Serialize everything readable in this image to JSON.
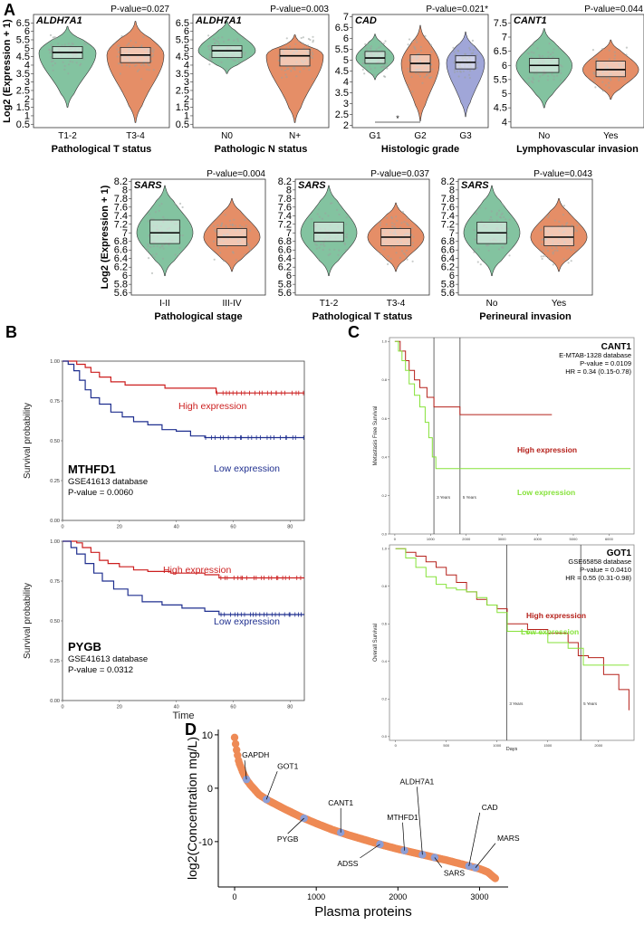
{
  "panel_letters": {
    "a": "A",
    "b": "B",
    "c": "C",
    "d": "D"
  },
  "colors": {
    "green": "#6db98f",
    "orange": "#e07a4c",
    "blue": "#8f97d1",
    "red": "#cc1f1f",
    "navy": "#1f2f8f",
    "lime": "#86e23a",
    "dred": "#b5201a",
    "dot": "#ee8a55",
    "marker": "#8c9ed6"
  },
  "chart_data": [
    {
      "type": "violin",
      "gene": "ALDH7A1",
      "pvalue": "P-value=0.027",
      "ylabel": "Log2 (Expression + 1)",
      "xlabel": "Pathological T status",
      "yticks": [
        "0.5",
        "1",
        "1.5",
        "2",
        "2.5",
        "3",
        "3.5",
        "4",
        "4.5",
        "5",
        "5.5",
        "6",
        "6.5"
      ],
      "ylim": [
        0.3,
        7
      ],
      "groups": [
        {
          "label": "T1-2",
          "color": "green",
          "median": 4.75,
          "q1": 4.4,
          "q3": 5.1,
          "min": 1.5,
          "max": 6.3
        },
        {
          "label": "T3-4",
          "color": "orange",
          "median": 4.6,
          "q1": 4.15,
          "q3": 5.05,
          "min": 0.6,
          "max": 6.6
        }
      ]
    },
    {
      "type": "violin",
      "gene": "ALDH7A1",
      "pvalue": "P-value=0.003",
      "ylabel": "",
      "xlabel": "Pathologic N status",
      "yticks": [
        "0.5",
        "1",
        "1.5",
        "2",
        "2.5",
        "3",
        "3.5",
        "4",
        "4.5",
        "5",
        "5.5",
        "6",
        "6.5"
      ],
      "ylim": [
        0.3,
        7
      ],
      "groups": [
        {
          "label": "N0",
          "color": "green",
          "median": 4.85,
          "q1": 4.45,
          "q3": 5.15,
          "min": 3.5,
          "max": 6.6
        },
        {
          "label": "N+",
          "color": "orange",
          "median": 4.55,
          "q1": 3.95,
          "q3": 4.95,
          "min": 0.6,
          "max": 5.8
        }
      ]
    },
    {
      "type": "violin",
      "gene": "CAD",
      "pvalue": "P-value=0.021*",
      "ylabel": "",
      "xlabel": "Histologic grade",
      "yticks": [
        "2",
        "2.5",
        "3",
        "3.5",
        "4",
        "4.5",
        "5",
        "5.5",
        "6",
        "6.5",
        "7"
      ],
      "ylim": [
        1.9,
        7.1
      ],
      "sig": "*",
      "groups": [
        {
          "label": "G1",
          "color": "green",
          "median": 5.1,
          "q1": 4.85,
          "q3": 5.4,
          "min": 4.1,
          "max": 6.2
        },
        {
          "label": "G2",
          "color": "orange",
          "median": 4.85,
          "q1": 4.45,
          "q3": 5.25,
          "min": 2.2,
          "max": 6.6
        },
        {
          "label": "G3",
          "color": "blue",
          "median": 4.9,
          "q1": 4.6,
          "q3": 5.2,
          "min": 2.4,
          "max": 6.3
        }
      ]
    },
    {
      "type": "violin",
      "gene": "CANT1",
      "pvalue": "P-value=0.044",
      "ylabel": "",
      "xlabel": "Lymphovascular invasion",
      "yticks": [
        "4",
        "4.5",
        "5",
        "5.5",
        "6",
        "6.5",
        "7",
        "7.5"
      ],
      "ylim": [
        3.8,
        7.8
      ],
      "groups": [
        {
          "label": "No",
          "color": "green",
          "median": 6.0,
          "q1": 5.75,
          "q3": 6.25,
          "min": 4.5,
          "max": 7.3
        },
        {
          "label": "Yes",
          "color": "orange",
          "median": 5.85,
          "q1": 5.6,
          "q3": 6.15,
          "min": 4.8,
          "max": 6.9
        }
      ]
    },
    {
      "type": "violin",
      "gene": "SARS",
      "pvalue": "P-value=0.004",
      "ylabel": "Log2 (Expression + 1)",
      "xlabel": "Pathological stage",
      "yticks": [
        "5.6",
        "5.8",
        "6",
        "6.2",
        "6.4",
        "6.6",
        "6.8",
        "7",
        "7.2",
        "7.4",
        "7.6",
        "7.8",
        "8",
        "8.2"
      ],
      "ylim": [
        5.55,
        8.25
      ],
      "groups": [
        {
          "label": "I-II",
          "color": "green",
          "median": 7.0,
          "q1": 6.75,
          "q3": 7.3,
          "min": 6.0,
          "max": 8.1
        },
        {
          "label": "III-IV",
          "color": "orange",
          "median": 6.9,
          "q1": 6.7,
          "q3": 7.1,
          "min": 6.1,
          "max": 7.8
        }
      ]
    },
    {
      "type": "violin",
      "gene": "SARS",
      "pvalue": "P-value=0.037",
      "ylabel": "",
      "xlabel": "Pathological T status",
      "yticks": [
        "5.6",
        "5.8",
        "6",
        "6.2",
        "6.4",
        "6.6",
        "6.8",
        "7",
        "7.2",
        "7.4",
        "7.6",
        "7.8",
        "8",
        "8.2"
      ],
      "ylim": [
        5.55,
        8.25
      ],
      "groups": [
        {
          "label": "T1-2",
          "color": "green",
          "median": 7.0,
          "q1": 6.8,
          "q3": 7.25,
          "min": 6.0,
          "max": 8.1
        },
        {
          "label": "T3-4",
          "color": "orange",
          "median": 6.9,
          "q1": 6.7,
          "q3": 7.1,
          "min": 6.1,
          "max": 7.7
        }
      ]
    },
    {
      "type": "violin",
      "gene": "SARS",
      "pvalue": "P-value=0.043",
      "ylabel": "",
      "xlabel": "Perineural invasion",
      "yticks": [
        "5.6",
        "5.8",
        "6",
        "6.2",
        "6.4",
        "6.6",
        "6.8",
        "7",
        "7.2",
        "7.4",
        "7.6",
        "7.8",
        "8",
        "8.2"
      ],
      "ylim": [
        5.55,
        8.25
      ],
      "groups": [
        {
          "label": "No",
          "color": "green",
          "median": 7.0,
          "q1": 6.75,
          "q3": 7.25,
          "min": 6.0,
          "max": 8.1
        },
        {
          "label": "Yes",
          "color": "orange",
          "median": 6.9,
          "q1": 6.7,
          "q3": 7.15,
          "min": 6.1,
          "max": 7.8
        }
      ]
    },
    {
      "type": "line",
      "title": "MTHFD1",
      "database": "GSE41613 database",
      "pvalue": "P-value = 0.0060",
      "ylabel": "Survival probability",
      "xlabel": "",
      "yticks": [
        "0.00",
        "0.25",
        "0.50",
        "0.75",
        "1.00"
      ],
      "xticks": [
        "0",
        "20",
        "40",
        "60",
        "80"
      ],
      "xlim": [
        0,
        85
      ],
      "ylim": [
        0,
        1
      ],
      "series": [
        {
          "name": "High expression",
          "color": "red",
          "points": [
            [
              0,
              1
            ],
            [
              3,
              1
            ],
            [
              5,
              0.98
            ],
            [
              8,
              0.96
            ],
            [
              10,
              0.93
            ],
            [
              13,
              0.9
            ],
            [
              17,
              0.87
            ],
            [
              22,
              0.85
            ],
            [
              33,
              0.85
            ],
            [
              36,
              0.83
            ],
            [
              50,
              0.83
            ],
            [
              54,
              0.8
            ],
            [
              85,
              0.8
            ]
          ]
        },
        {
          "name": "Low expression",
          "color": "navy",
          "points": [
            [
              0,
              1
            ],
            [
              2,
              0.98
            ],
            [
              4,
              0.94
            ],
            [
              6,
              0.88
            ],
            [
              8,
              0.82
            ],
            [
              10,
              0.77
            ],
            [
              13,
              0.73
            ],
            [
              17,
              0.68
            ],
            [
              21,
              0.65
            ],
            [
              25,
              0.62
            ],
            [
              30,
              0.6
            ],
            [
              35,
              0.57
            ],
            [
              40,
              0.56
            ],
            [
              45,
              0.53
            ],
            [
              50,
              0.52
            ],
            [
              85,
              0.52
            ]
          ]
        }
      ]
    },
    {
      "type": "line",
      "title": "PYGB",
      "database": "GSE41613 database",
      "pvalue": "P-value = 0.0312",
      "ylabel": "Survival probability",
      "xlabel": "Time",
      "yticks": [
        "0.00",
        "0.25",
        "0.50",
        "0.75",
        "1.00"
      ],
      "xticks": [
        "0",
        "20",
        "40",
        "60",
        "80"
      ],
      "xlim": [
        0,
        85
      ],
      "ylim": [
        0,
        1
      ],
      "series": [
        {
          "name": "High expression",
          "color": "red",
          "points": [
            [
              0,
              1
            ],
            [
              5,
              0.99
            ],
            [
              7,
              0.96
            ],
            [
              10,
              0.93
            ],
            [
              13,
              0.88
            ],
            [
              16,
              0.86
            ],
            [
              20,
              0.84
            ],
            [
              25,
              0.82
            ],
            [
              30,
              0.81
            ],
            [
              38,
              0.8
            ],
            [
              50,
              0.79
            ],
            [
              55,
              0.77
            ],
            [
              85,
              0.77
            ]
          ]
        },
        {
          "name": "Low expression",
          "color": "navy",
          "points": [
            [
              0,
              1
            ],
            [
              3,
              0.96
            ],
            [
              5,
              0.92
            ],
            [
              8,
              0.86
            ],
            [
              11,
              0.8
            ],
            [
              14,
              0.75
            ],
            [
              18,
              0.7
            ],
            [
              23,
              0.66
            ],
            [
              28,
              0.62
            ],
            [
              35,
              0.6
            ],
            [
              42,
              0.58
            ],
            [
              50,
              0.56
            ],
            [
              55,
              0.54
            ],
            [
              85,
              0.54
            ]
          ]
        }
      ]
    },
    {
      "type": "line",
      "title": "CANT1",
      "database": "E-MTAB-1328 database",
      "pvalue": "P-value = 0.0109",
      "hr": "HR = 0.34 (0.15-0.78)",
      "ylabel": "Metastasis Free Survival",
      "xlabel": "",
      "yticks": [
        "0.0",
        "0.2",
        "0.4",
        "0.6",
        "0.8",
        "1.0"
      ],
      "xticks": [
        "0",
        "1000",
        "2000",
        "3000",
        "4000",
        "5000",
        "6000"
      ],
      "xlim": [
        -150,
        6700
      ],
      "ylim": [
        0,
        1.02
      ],
      "vlines": [
        {
          "x": 1095,
          "label": "3 Years"
        },
        {
          "x": 1825,
          "label": "5 Years"
        }
      ],
      "series": [
        {
          "name": "High expression",
          "color": "dred",
          "points": [
            [
              0,
              1
            ],
            [
              150,
              0.95
            ],
            [
              300,
              0.9
            ],
            [
              400,
              0.85
            ],
            [
              550,
              0.8
            ],
            [
              700,
              0.76
            ],
            [
              900,
              0.71
            ],
            [
              1095,
              0.66
            ],
            [
              1825,
              0.62
            ],
            [
              4400,
              0.62
            ]
          ]
        },
        {
          "name": "Low expression",
          "color": "lime",
          "points": [
            [
              0,
              1
            ],
            [
              100,
              0.95
            ],
            [
              200,
              0.9
            ],
            [
              300,
              0.85
            ],
            [
              400,
              0.78
            ],
            [
              550,
              0.72
            ],
            [
              700,
              0.66
            ],
            [
              850,
              0.58
            ],
            [
              950,
              0.5
            ],
            [
              1050,
              0.4
            ],
            [
              1150,
              0.34
            ],
            [
              6600,
              0.34
            ]
          ]
        }
      ]
    },
    {
      "type": "line",
      "title": "GOT1",
      "database": "GSE65858 database",
      "pvalue": "P-value = 0.0410",
      "hr": "HR = 0.55 (0.31-0.98)",
      "ylabel": "Overall Survival",
      "xlabel": "Days",
      "yticks": [
        "0.0",
        "0.2",
        "0.4",
        "0.6",
        "0.8",
        "1.0"
      ],
      "xticks": [
        "0",
        "500",
        "1000",
        "1500",
        "2000"
      ],
      "xlim": [
        -60,
        2350
      ],
      "ylim": [
        -0.02,
        1.02
      ],
      "vlines": [
        {
          "x": 1095,
          "label": "3 Years"
        },
        {
          "x": 1825,
          "label": "5 Years"
        }
      ],
      "series": [
        {
          "name": "High expression",
          "color": "dred",
          "points": [
            [
              0,
              1
            ],
            [
              100,
              0.98
            ],
            [
              200,
              0.96
            ],
            [
              300,
              0.93
            ],
            [
              400,
              0.9
            ],
            [
              500,
              0.86
            ],
            [
              600,
              0.82
            ],
            [
              700,
              0.77
            ],
            [
              800,
              0.73
            ],
            [
              900,
              0.7
            ],
            [
              1000,
              0.68
            ],
            [
              1100,
              0.6
            ],
            [
              1300,
              0.57
            ],
            [
              1500,
              0.55
            ],
            [
              1600,
              0.55
            ],
            [
              1700,
              0.5
            ],
            [
              1800,
              0.43
            ],
            [
              1900,
              0.42
            ],
            [
              2050,
              0.33
            ],
            [
              2200,
              0.25
            ],
            [
              2300,
              0.14
            ]
          ]
        },
        {
          "name": "Low expression",
          "color": "lime",
          "points": [
            [
              0,
              1
            ],
            [
              100,
              0.95
            ],
            [
              200,
              0.9
            ],
            [
              300,
              0.85
            ],
            [
              400,
              0.81
            ],
            [
              500,
              0.79
            ],
            [
              600,
              0.78
            ],
            [
              700,
              0.77
            ],
            [
              800,
              0.74
            ],
            [
              900,
              0.7
            ],
            [
              1000,
              0.66
            ],
            [
              1100,
              0.56
            ],
            [
              1300,
              0.55
            ],
            [
              1500,
              0.5
            ],
            [
              1700,
              0.47
            ],
            [
              1850,
              0.38
            ],
            [
              2300,
              0.38
            ]
          ]
        }
      ]
    },
    {
      "type": "scatter",
      "title": "",
      "xlabel": "Plasma proteins",
      "ylabel": "log2(Concentration mg/L)",
      "xticks": [
        "0",
        "1000",
        "2000",
        "3000"
      ],
      "yticks": [
        "10",
        "0",
        "-10"
      ],
      "xlim": [
        -200,
        3350
      ],
      "ylim": [
        -18.5,
        11
      ],
      "curve": [
        [
          0,
          9.5
        ],
        [
          20,
          7.5
        ],
        [
          50,
          5
        ],
        [
          100,
          3
        ],
        [
          150,
          1.5
        ],
        [
          200,
          0.5
        ],
        [
          300,
          -1.2
        ],
        [
          400,
          -2.2
        ],
        [
          600,
          -3.8
        ],
        [
          800,
          -5.3
        ],
        [
          1000,
          -6.6
        ],
        [
          1200,
          -7.8
        ],
        [
          1400,
          -8.8
        ],
        [
          1600,
          -9.7
        ],
        [
          1800,
          -10.6
        ],
        [
          2000,
          -11.4
        ],
        [
          2200,
          -12.1
        ],
        [
          2400,
          -12.8
        ],
        [
          2600,
          -13.5
        ],
        [
          2800,
          -14.3
        ],
        [
          3000,
          -15.1
        ],
        [
          3100,
          -15.7
        ],
        [
          3200,
          -17
        ]
      ],
      "labels": [
        {
          "text": "GAPDH",
          "x": 145
        },
        {
          "text": "GOT1",
          "x": 390
        },
        {
          "text": "PYGB",
          "x": 850
        },
        {
          "text": "CANT1",
          "x": 1300
        },
        {
          "text": "ADSS",
          "x": 1780
        },
        {
          "text": "MTHFD1",
          "x": 2080
        },
        {
          "text": "ALDH7A1",
          "x": 2300
        },
        {
          "text": "SARS",
          "x": 2450
        },
        {
          "text": "CAD",
          "x": 2870
        },
        {
          "text": "MARS",
          "x": 2950
        }
      ]
    }
  ]
}
